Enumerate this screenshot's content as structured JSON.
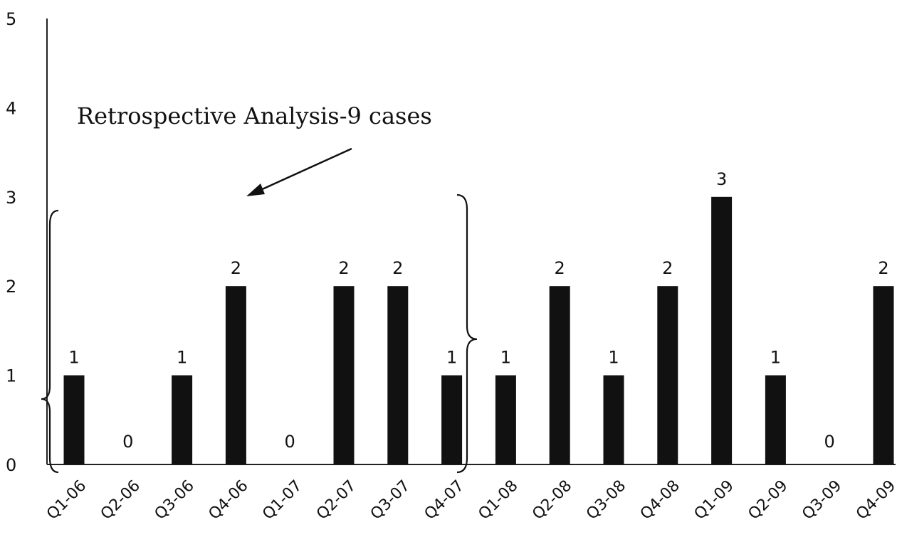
{
  "chart_data": {
    "type": "bar",
    "categories": [
      "Q1-06",
      "Q2-06",
      "Q3-06",
      "Q4-06",
      "Q1-07",
      "Q2-07",
      "Q3-07",
      "Q4-07",
      "Q1-08",
      "Q2-08",
      "Q3-08",
      "Q4-08",
      "Q1-09",
      "Q2-09",
      "Q3-09",
      "Q4-09"
    ],
    "values": [
      1,
      0,
      1,
      2,
      0,
      2,
      2,
      1,
      1,
      2,
      1,
      2,
      3,
      1,
      0,
      2
    ],
    "title": "",
    "xlabel": "",
    "ylabel": "",
    "ylim": [
      0,
      5
    ],
    "yticks": [
      0,
      1,
      2,
      3,
      4,
      5
    ],
    "grid": false,
    "data_labels": true,
    "bar_color": "#111111",
    "annotation": {
      "text": "Retrospective Analysis-9 cases",
      "bracket_range": [
        "Q1-06",
        "Q4-07"
      ]
    }
  }
}
